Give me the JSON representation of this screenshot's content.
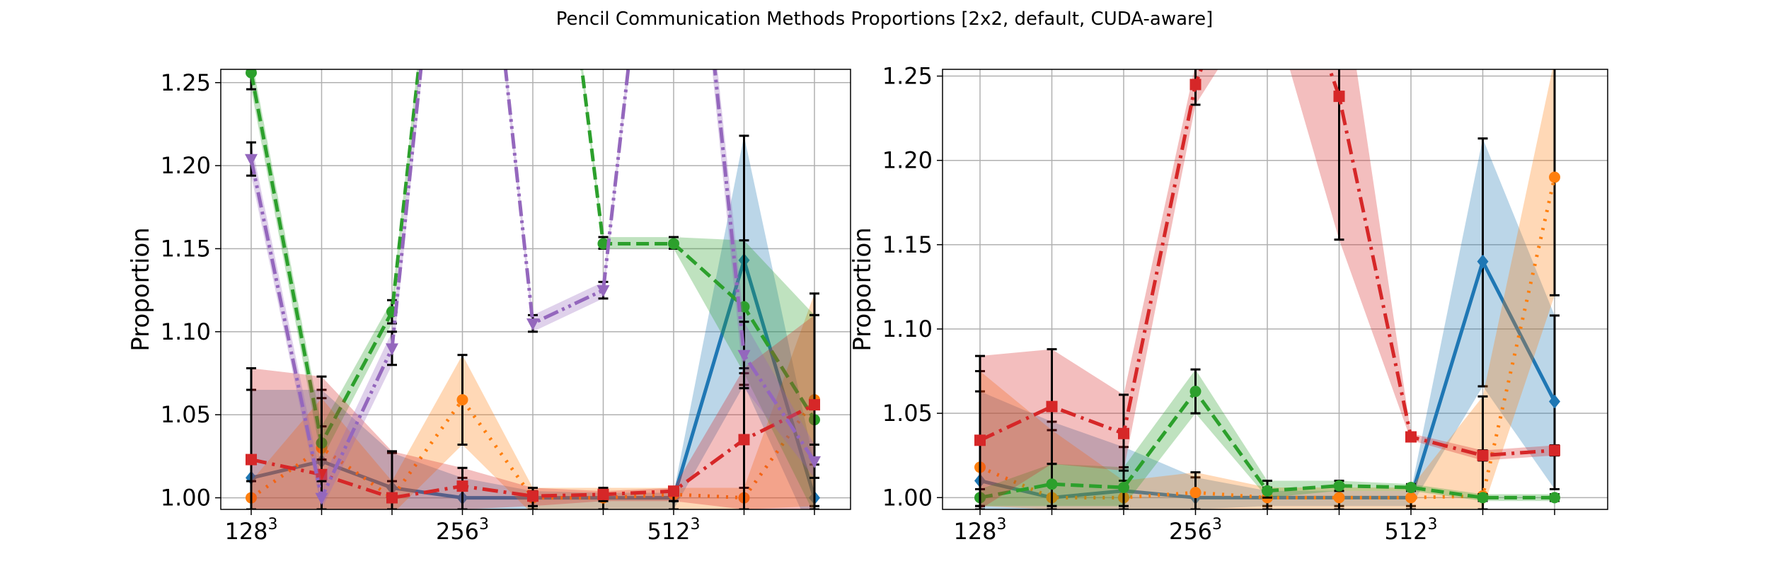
{
  "figure": {
    "title": "Pencil Communication Methods Proportions [2x2, default, CUDA-aware]"
  },
  "chart_data": [
    {
      "type": "line",
      "ylabel": "Proportion",
      "xlabel": "",
      "ylim": [
        0.993,
        1.258
      ],
      "x_index": [
        0,
        1,
        2,
        3,
        4,
        5,
        6,
        7,
        8
      ],
      "xtick_labels": [
        {
          "index": 0,
          "base": "128",
          "exp": "3"
        },
        {
          "index": 3,
          "base": "256",
          "exp": "3"
        },
        {
          "index": 6,
          "base": "512",
          "exp": "3"
        }
      ],
      "yticks": [
        "1.00",
        "1.05",
        "1.10",
        "1.15",
        "1.20",
        "1.25"
      ],
      "yticks_values": [
        1.0,
        1.05,
        1.1,
        1.15,
        1.2,
        1.25
      ],
      "grid": true,
      "series": [
        {
          "color": "#1f77b4",
          "dash": "solid",
          "marker": "diamond",
          "values": [
            1.012,
            1.022,
            1.006,
            1.0,
            1.0,
            1.0,
            1.0,
            1.143,
            1.0
          ],
          "lower": [
            0.99,
            0.99,
            0.992,
            0.992,
            0.993,
            0.993,
            0.993,
            1.068,
            0.975
          ],
          "upper": [
            1.065,
            1.065,
            1.027,
            1.012,
            1.004,
            1.003,
            1.003,
            1.218,
            1.02
          ]
        },
        {
          "color": "#ff7f0e",
          "dash": "dotted",
          "marker": "circle",
          "values": [
            1.0,
            1.03,
            1.0,
            1.059,
            1.0,
            1.0,
            1.002,
            1.0,
            1.059
          ],
          "lower": [
            0.99,
            0.993,
            0.99,
            1.032,
            0.99,
            0.993,
            0.993,
            0.993,
            0.995
          ],
          "upper": [
            1.01,
            1.06,
            1.01,
            1.086,
            1.006,
            1.006,
            1.006,
            1.006,
            1.123
          ]
        },
        {
          "color": "#2ca02c",
          "dash": "dashed",
          "marker": "circle",
          "values": [
            1.256,
            1.033,
            1.112,
            1.5,
            1.5,
            1.153,
            1.153,
            1.115,
            1.047
          ],
          "lower": [
            1.246,
            1.023,
            1.105,
            1.49,
            1.49,
            1.15,
            1.15,
            1.075,
            0.99
          ],
          "upper": [
            1.266,
            1.043,
            1.119,
            1.51,
            1.51,
            1.157,
            1.157,
            1.155,
            1.11
          ],
          "break_after": [
            2
          ]
        },
        {
          "color": "#d62728",
          "dash": "dashdot",
          "marker": "square",
          "values": [
            1.023,
            1.014,
            1.0,
            1.007,
            1.001,
            1.002,
            1.004,
            1.035,
            1.056
          ],
          "lower": [
            0.993,
            0.993,
            0.993,
            0.993,
            0.995,
            0.998,
            0.998,
            0.993,
            0.993
          ],
          "upper": [
            1.078,
            1.073,
            1.028,
            1.018,
            1.006,
            1.004,
            1.006,
            1.078,
            1.11
          ]
        },
        {
          "color": "#9467bd",
          "dash": "dashdotdot",
          "marker": "triangle-down",
          "values": [
            1.204,
            1.0,
            1.09,
            1.5,
            1.105,
            1.125,
            1.5,
            1.086,
            1.022
          ],
          "lower": [
            1.194,
            0.993,
            1.08,
            1.49,
            1.1,
            1.12,
            1.49,
            1.066,
            1.012
          ],
          "upper": [
            1.214,
            1.01,
            1.1,
            1.51,
            1.11,
            1.13,
            1.51,
            1.106,
            1.032
          ],
          "break_after": [
            3
          ]
        }
      ]
    },
    {
      "type": "line",
      "ylabel": "Proportion",
      "xlabel": "",
      "ylim": [
        0.993,
        1.254
      ],
      "x_index": [
        0,
        1,
        2,
        3,
        4,
        5,
        6,
        7,
        8
      ],
      "xtick_labels": [
        {
          "index": 0,
          "base": "128",
          "exp": "3"
        },
        {
          "index": 3,
          "base": "256",
          "exp": "3"
        },
        {
          "index": 6,
          "base": "512",
          "exp": "3"
        }
      ],
      "yticks": [
        "1.00",
        "1.05",
        "1.10",
        "1.15",
        "1.20",
        "1.25"
      ],
      "yticks_values": [
        1.0,
        1.05,
        1.1,
        1.15,
        1.2,
        1.25
      ],
      "grid": true,
      "series": [
        {
          "color": "#1f77b4",
          "dash": "solid",
          "marker": "diamond",
          "values": [
            1.01,
            1.0,
            1.004,
            1.0,
            1.0,
            1.0,
            1.0,
            1.14,
            1.057
          ],
          "lower": [
            0.993,
            0.993,
            0.993,
            0.993,
            0.995,
            0.995,
            0.995,
            1.066,
            1.005
          ],
          "upper": [
            1.063,
            1.045,
            1.03,
            1.012,
            1.004,
            1.004,
            1.004,
            1.213,
            1.108
          ]
        },
        {
          "color": "#ff7f0e",
          "dash": "dotted",
          "marker": "circle",
          "values": [
            1.018,
            1.0,
            1.0,
            1.003,
            1.0,
            1.0,
            1.0,
            1.001,
            1.19
          ],
          "lower": [
            0.995,
            0.993,
            0.993,
            0.993,
            0.993,
            0.993,
            0.993,
            0.993,
            1.12
          ],
          "upper": [
            1.075,
            1.04,
            1.01,
            1.015,
            1.006,
            1.006,
            1.006,
            1.06,
            1.26
          ]
        },
        {
          "color": "#2ca02c",
          "dash": "dashed",
          "marker": "circle",
          "values": [
            1.0,
            1.008,
            1.006,
            1.063,
            1.004,
            1.007,
            1.006,
            1.0,
            1.0
          ],
          "lower": [
            0.995,
            0.995,
            0.995,
            1.05,
            1.0,
            1.004,
            1.004,
            0.998,
            0.998
          ],
          "upper": [
            1.005,
            1.02,
            1.018,
            1.076,
            1.01,
            1.01,
            1.008,
            1.002,
            1.002
          ]
        },
        {
          "color": "#d62728",
          "dash": "dashdot",
          "marker": "square",
          "values": [
            1.034,
            1.054,
            1.038,
            1.245,
            1.36,
            1.238,
            1.036,
            1.025,
            1.028
          ],
          "lower": [
            0.993,
            1.02,
            1.016,
            1.233,
            1.3,
            1.153,
            1.034,
            1.022,
            1.025
          ],
          "upper": [
            1.084,
            1.088,
            1.061,
            1.257,
            1.42,
            1.323,
            1.038,
            1.028,
            1.031
          ]
        }
      ]
    }
  ]
}
